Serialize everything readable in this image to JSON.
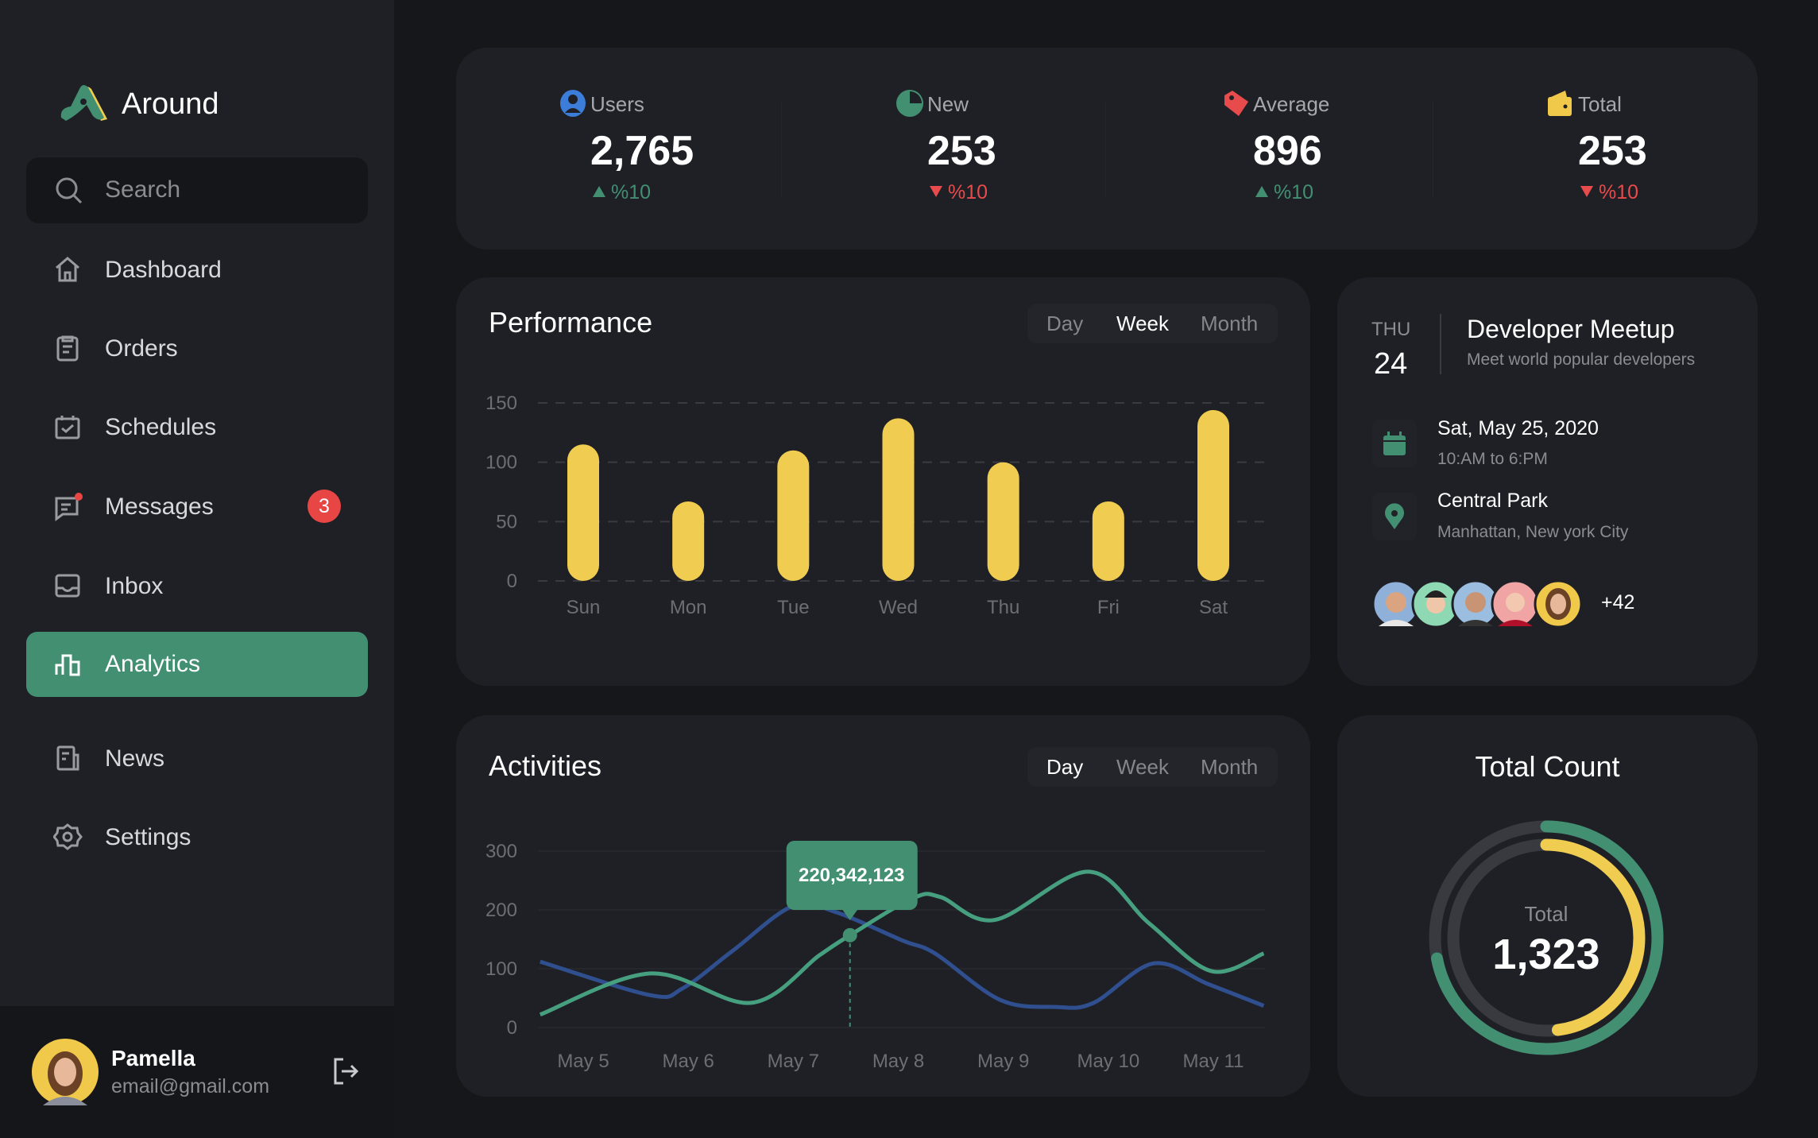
{
  "app": {
    "name": "Around"
  },
  "search": {
    "placeholder": "Search"
  },
  "nav": [
    {
      "label": "Dashboard",
      "icon": "home-icon"
    },
    {
      "label": "Orders",
      "icon": "clipboard-icon"
    },
    {
      "label": "Schedules",
      "icon": "calendar-check-icon"
    },
    {
      "label": "Messages",
      "icon": "message-icon",
      "badge": "3"
    },
    {
      "label": "Inbox",
      "icon": "inbox-icon"
    },
    {
      "label": "Analytics",
      "icon": "bar-chart-icon",
      "active": true
    },
    {
      "label": "News",
      "icon": "newspaper-icon"
    },
    {
      "label": "Settings",
      "icon": "gear-icon"
    }
  ],
  "user": {
    "name": "Pamella",
    "email": "email@gmail.com"
  },
  "stats": [
    {
      "label": "Users",
      "value": "2,765",
      "change": "%10",
      "trend": "up",
      "icon": "user-icon",
      "color": "#3b7dd8"
    },
    {
      "label": "New",
      "value": "253",
      "change": "%10",
      "trend": "down",
      "icon": "pie-icon",
      "color": "#428f72"
    },
    {
      "label": "Average",
      "value": "896",
      "change": "%10",
      "trend": "up",
      "icon": "tag-icon",
      "color": "#e84b4b"
    },
    {
      "label": "Total",
      "value": "253",
      "change": "%10",
      "trend": "down",
      "icon": "wallet-icon",
      "color": "#f0c94a"
    }
  ],
  "colors": {
    "accent": "#428f72",
    "up": "#428f72",
    "down": "#e84b4b",
    "bar": "#f0cd50",
    "line_blue": "#2f4f8f",
    "line_green": "#46a07f"
  },
  "performance": {
    "title": "Performance",
    "tabs": [
      "Day",
      "Week",
      "Month"
    ],
    "active_tab": "Week"
  },
  "activities": {
    "title": "Activities",
    "tabs": [
      "Day",
      "Week",
      "Month"
    ],
    "active_tab": "Day",
    "tooltip": "220,342,123"
  },
  "event": {
    "weekday": "THU",
    "day": "24",
    "title": "Developer Meetup",
    "subtitle": "Meet world popular developers",
    "date": "Sat, May 25, 2020",
    "time": "10:AM to 6:PM",
    "place": "Central Park",
    "address": "Manhattan, New york City",
    "attendees_more": "+42"
  },
  "total": {
    "title": "Total Count",
    "label": "Total",
    "value": "1,323",
    "outer_fraction": 0.72,
    "inner_fraction": 0.48
  },
  "chart_data": [
    {
      "type": "bar",
      "categories": [
        "Sun",
        "Mon",
        "Tue",
        "Wed",
        "Thu",
        "Fri",
        "Sat"
      ],
      "values": [
        115,
        67,
        110,
        137,
        100,
        67,
        144
      ],
      "yticks": [
        0,
        50,
        100,
        150
      ],
      "ylim": [
        0,
        150
      ],
      "grid": true
    },
    {
      "type": "line",
      "xticks": [
        "May 5",
        "May 6",
        "May 7",
        "May 8",
        "May 9",
        "May 10",
        "May 11"
      ],
      "xlim": [
        4.59,
        11.48
      ],
      "yticks": [
        0,
        100,
        200,
        300
      ],
      "ylim": [
        0,
        300
      ],
      "grid": true,
      "series": [
        {
          "color": "#2f4f8f",
          "points": [
            [
              4.59,
              112
            ],
            [
              5.64,
              55
            ],
            [
              5.95,
              67
            ],
            [
              6.42,
              130
            ],
            [
              7.0,
              207
            ],
            [
              7.41,
              196
            ],
            [
              8.04,
              148
            ],
            [
              8.35,
              126
            ],
            [
              8.97,
              47
            ],
            [
              9.5,
              35
            ],
            [
              9.86,
              42
            ],
            [
              10.43,
              109
            ],
            [
              10.95,
              74
            ],
            [
              11.48,
              37
            ]
          ]
        },
        {
          "color": "#46a07f",
          "points": [
            [
              4.59,
              22
            ],
            [
              5.64,
              92
            ],
            [
              6.6,
              42
            ],
            [
              7.25,
              123
            ],
            [
              7.54,
              157
            ],
            [
              8.14,
              220
            ],
            [
              8.4,
              222
            ],
            [
              8.92,
              183
            ],
            [
              9.81,
              265
            ],
            [
              10.39,
              177
            ],
            [
              10.98,
              96
            ],
            [
              11.48,
              126
            ]
          ]
        }
      ],
      "highlight": {
        "x": 7.54,
        "y": 157,
        "label": "220,342,123"
      }
    }
  ]
}
